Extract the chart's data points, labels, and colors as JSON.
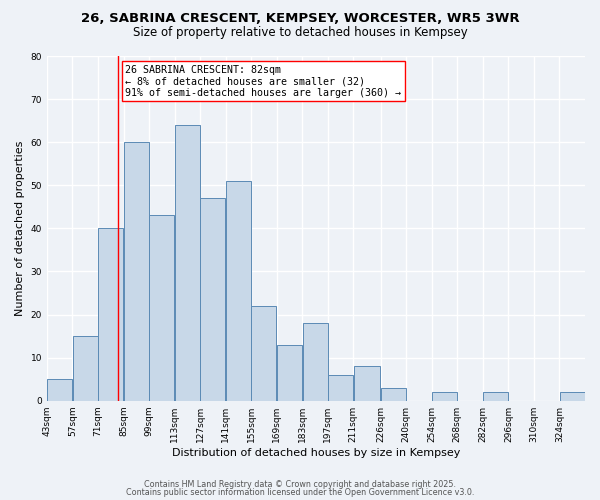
{
  "title": "26, SABRINA CRESCENT, KEMPSEY, WORCESTER, WR5 3WR",
  "subtitle": "Size of property relative to detached houses in Kempsey",
  "xlabel": "Distribution of detached houses by size in Kempsey",
  "ylabel": "Number of detached properties",
  "bin_labels": [
    "43sqm",
    "57sqm",
    "71sqm",
    "85sqm",
    "99sqm",
    "113sqm",
    "127sqm",
    "141sqm",
    "155sqm",
    "169sqm",
    "183sqm",
    "197sqm",
    "211sqm",
    "226sqm",
    "240sqm",
    "254sqm",
    "268sqm",
    "282sqm",
    "296sqm",
    "310sqm",
    "324sqm"
  ],
  "bin_edges": [
    43,
    57,
    71,
    85,
    99,
    113,
    127,
    141,
    155,
    169,
    183,
    197,
    211,
    226,
    240,
    254,
    268,
    282,
    296,
    310,
    324,
    338
  ],
  "values": [
    5,
    15,
    40,
    60,
    43,
    64,
    47,
    51,
    22,
    13,
    18,
    6,
    8,
    3,
    0,
    2,
    0,
    2,
    0,
    0,
    2
  ],
  "bar_facecolor": "#c8d8e8",
  "bar_edgecolor": "#5b8ab5",
  "reference_line_x": 82,
  "annotation_text": "26 SABRINA CRESCENT: 82sqm\n← 8% of detached houses are smaller (32)\n91% of semi-detached houses are larger (360) →",
  "ylim": [
    0,
    80
  ],
  "yticks": [
    0,
    10,
    20,
    30,
    40,
    50,
    60,
    70,
    80
  ],
  "bg_color": "#eef2f7",
  "plot_bg_color": "#eef2f7",
  "grid_color": "#ffffff",
  "footer1": "Contains HM Land Registry data © Crown copyright and database right 2025.",
  "footer2": "Contains public sector information licensed under the Open Government Licence v3.0.",
  "title_fontsize": 9.5,
  "subtitle_fontsize": 8.5,
  "annot_fontsize": 7.2,
  "axis_label_fontsize": 8,
  "tick_fontsize": 6.5,
  "footer_fontsize": 5.8
}
